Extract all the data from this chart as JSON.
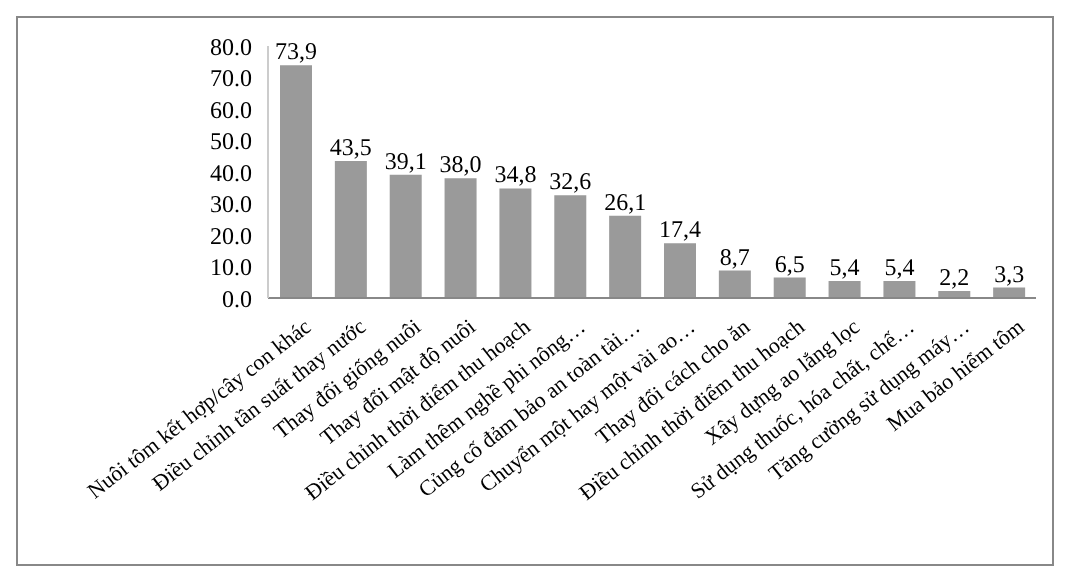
{
  "chart_data": {
    "type": "bar",
    "categories": [
      "Nuôi tôm kết hợp/cây con khác",
      "Điều chỉnh tần suất thay nước",
      "Thay đổi giống nuôi",
      "Thay đổi mật độ nuôi",
      "Điều chỉnh thời điểm thu hoạch",
      "Làm thêm nghề phi nông…",
      "Củng cố đảm bảo an toàn tài…",
      "Chuyển một hay một vài ao…",
      "Thay đổi cách cho ăn",
      "Điều chỉnh thời điểm thu hoạch",
      "Xây dựng ao lắng lọc",
      "Sử dụng thuốc, hóa chất, chế…",
      "Tăng cường sử dụng máy…",
      "Mua bảo hiểm tôm"
    ],
    "values": [
      73.9,
      43.5,
      39.1,
      38.0,
      34.8,
      32.6,
      26.1,
      17.4,
      8.7,
      6.5,
      5.4,
      5.4,
      2.2,
      3.3
    ],
    "value_labels": [
      "73,9",
      "43,5",
      "39,1",
      "38,0",
      "34,8",
      "32,6",
      "26,1",
      "17,4",
      "8,7",
      "6,5",
      "5,4",
      "5,4",
      "2,2",
      "3,3"
    ],
    "color": "#9a9a9a",
    "ylim": [
      0,
      80
    ],
    "yticks": [
      {
        "value": 0,
        "label": "0.0"
      },
      {
        "value": 10,
        "label": "10.0"
      },
      {
        "value": 20,
        "label": "20.0"
      },
      {
        "value": 30,
        "label": "30.0"
      },
      {
        "value": 40,
        "label": "40.0"
      },
      {
        "value": 50,
        "label": "50.0"
      },
      {
        "value": 60,
        "label": "60.0"
      },
      {
        "value": 70,
        "label": "70.0"
      },
      {
        "value": 80,
        "label": "80.0"
      }
    ],
    "grid": false,
    "legend": false
  }
}
